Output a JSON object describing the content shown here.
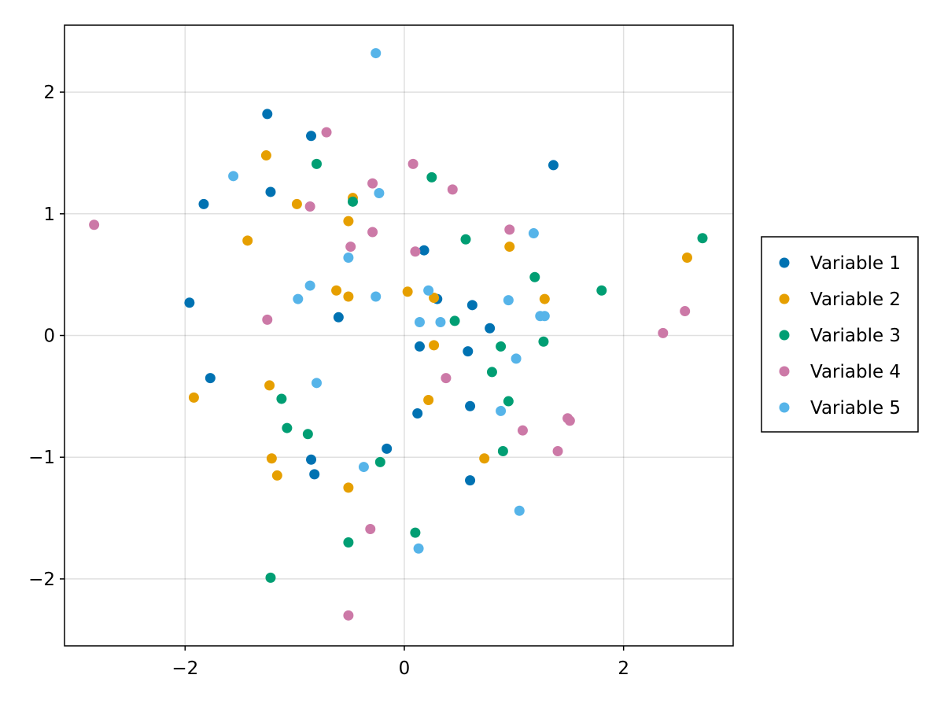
{
  "chart_data": {
    "type": "scatter",
    "title": "",
    "xlabel": "",
    "ylabel": "",
    "xlim": [
      -3.1,
      3.0
    ],
    "ylim": [
      -2.55,
      2.55
    ],
    "xticks": [
      {
        "value": -2,
        "label": "−2"
      },
      {
        "value": 0,
        "label": "0"
      },
      {
        "value": 2,
        "label": "2"
      }
    ],
    "yticks": [
      {
        "value": -2,
        "label": "−2"
      },
      {
        "value": -1,
        "label": "−1"
      },
      {
        "value": 0,
        "label": "0"
      },
      {
        "value": 1,
        "label": "1"
      },
      {
        "value": 2,
        "label": "2"
      }
    ],
    "grid": true,
    "legend": {
      "placement": "right"
    },
    "series": [
      {
        "name": "Variable 1",
        "color": "#0072B2",
        "points": [
          [
            -1.25,
            1.82
          ],
          [
            -0.85,
            1.64
          ],
          [
            1.36,
            1.4
          ],
          [
            -1.22,
            1.18
          ],
          [
            -1.83,
            1.08
          ],
          [
            0.18,
            0.7
          ],
          [
            0.3,
            0.3
          ],
          [
            0.62,
            0.25
          ],
          [
            -1.96,
            0.27
          ],
          [
            -0.6,
            0.15
          ],
          [
            0.78,
            0.06
          ],
          [
            0.14,
            -0.09
          ],
          [
            0.58,
            -0.13
          ],
          [
            -1.77,
            -0.35
          ],
          [
            0.6,
            -0.58
          ],
          [
            0.12,
            -0.64
          ],
          [
            -0.16,
            -0.93
          ],
          [
            -0.85,
            -1.02
          ],
          [
            -0.82,
            -1.14
          ],
          [
            0.6,
            -1.19
          ]
        ]
      },
      {
        "name": "Variable 2",
        "color": "#E69F00",
        "points": [
          [
            -1.26,
            1.48
          ],
          [
            -0.47,
            1.13
          ],
          [
            -0.98,
            1.08
          ],
          [
            -0.51,
            0.94
          ],
          [
            -1.43,
            0.78
          ],
          [
            2.58,
            0.64
          ],
          [
            0.96,
            0.73
          ],
          [
            -0.62,
            0.37
          ],
          [
            0.03,
            0.36
          ],
          [
            -0.51,
            0.32
          ],
          [
            0.27,
            0.31
          ],
          [
            1.28,
            0.3
          ],
          [
            0.27,
            -0.08
          ],
          [
            -1.23,
            -0.41
          ],
          [
            0.22,
            -0.53
          ],
          [
            -1.92,
            -0.51
          ],
          [
            -1.21,
            -1.01
          ],
          [
            0.73,
            -1.01
          ],
          [
            -1.16,
            -1.15
          ],
          [
            -0.51,
            -1.25
          ]
        ]
      },
      {
        "name": "Variable 3",
        "color": "#009E73",
        "points": [
          [
            -0.8,
            1.41
          ],
          [
            0.25,
            1.3
          ],
          [
            -0.47,
            1.1
          ],
          [
            2.72,
            0.8
          ],
          [
            0.56,
            0.79
          ],
          [
            1.19,
            0.48
          ],
          [
            1.8,
            0.37
          ],
          [
            0.46,
            0.12
          ],
          [
            0.88,
            -0.09
          ],
          [
            1.27,
            -0.05
          ],
          [
            0.8,
            -0.3
          ],
          [
            0.95,
            -0.54
          ],
          [
            -1.12,
            -0.52
          ],
          [
            -1.07,
            -0.76
          ],
          [
            -0.88,
            -0.81
          ],
          [
            0.9,
            -0.95
          ],
          [
            -0.22,
            -1.04
          ],
          [
            0.1,
            -1.62
          ],
          [
            -0.51,
            -1.7
          ],
          [
            -1.22,
            -1.99
          ]
        ]
      },
      {
        "name": "Variable 4",
        "color": "#CC79A7",
        "points": [
          [
            -0.71,
            1.67
          ],
          [
            0.08,
            1.41
          ],
          [
            -0.29,
            1.25
          ],
          [
            0.44,
            1.2
          ],
          [
            -0.86,
            1.06
          ],
          [
            -2.83,
            0.91
          ],
          [
            0.96,
            0.87
          ],
          [
            -0.29,
            0.85
          ],
          [
            -0.49,
            0.73
          ],
          [
            0.1,
            0.69
          ],
          [
            2.56,
            0.2
          ],
          [
            -1.25,
            0.13
          ],
          [
            2.36,
            0.02
          ],
          [
            0.38,
            -0.35
          ],
          [
            1.49,
            -0.68
          ],
          [
            1.51,
            -0.7
          ],
          [
            1.08,
            -0.78
          ],
          [
            1.4,
            -0.95
          ],
          [
            -0.31,
            -1.59
          ],
          [
            -0.51,
            -2.3
          ]
        ]
      },
      {
        "name": "Variable 5",
        "color": "#56B4E9",
        "points": [
          [
            -0.26,
            2.32
          ],
          [
            -1.56,
            1.31
          ],
          [
            -0.23,
            1.17
          ],
          [
            1.18,
            0.84
          ],
          [
            -0.51,
            0.64
          ],
          [
            -0.86,
            0.41
          ],
          [
            0.22,
            0.37
          ],
          [
            -0.97,
            0.3
          ],
          [
            -0.26,
            0.32
          ],
          [
            0.95,
            0.29
          ],
          [
            1.24,
            0.16
          ],
          [
            1.28,
            0.16
          ],
          [
            0.14,
            0.11
          ],
          [
            0.33,
            0.11
          ],
          [
            1.02,
            -0.19
          ],
          [
            -0.8,
            -0.39
          ],
          [
            0.88,
            -0.62
          ],
          [
            -0.37,
            -1.08
          ],
          [
            1.05,
            -1.44
          ],
          [
            0.13,
            -1.75
          ]
        ]
      }
    ]
  }
}
